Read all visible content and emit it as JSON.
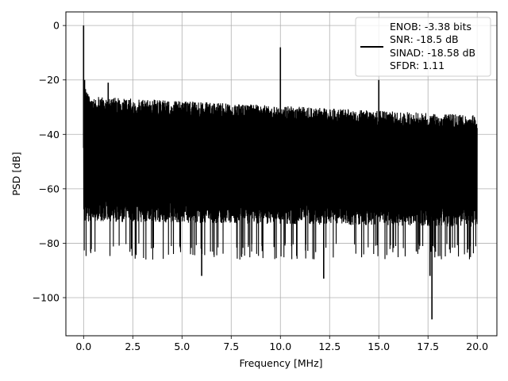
{
  "chart_data": {
    "type": "line",
    "xlabel": "Frequency [MHz]",
    "ylabel": "PSD [dB]",
    "xlim": [
      -0.9,
      21.0
    ],
    "ylim": [
      -114,
      5
    ],
    "xticks": [
      0.0,
      2.5,
      5.0,
      7.5,
      10.0,
      12.5,
      15.0,
      17.5,
      20.0
    ],
    "xtick_labels": [
      "0.0",
      "2.5",
      "5.0",
      "7.5",
      "10.0",
      "12.5",
      "15.0",
      "17.5",
      "20.0"
    ],
    "yticks": [
      0,
      -20,
      -40,
      -60,
      -80,
      -100
    ],
    "ytick_labels": [
      "0",
      "−20",
      "−40",
      "−60",
      "−80",
      "−100"
    ],
    "grid": true,
    "legend": {
      "position": "top-right",
      "lines": [
        "ENOB: -3.38 bits",
        "SNR: -18.5 dB",
        "SINAD: -18.58 dB",
        "SFDR: 1.11"
      ]
    },
    "series": [
      {
        "color": "#000000",
        "noise_floor": {
          "x_range": [
            0.0,
            20.0
          ],
          "upper_envelope_db": [
            -26,
            -33
          ],
          "lower_typical_db": [
            -68,
            -70
          ],
          "deep_dip_db": -80
        },
        "spikes": [
          {
            "x": 0.0,
            "y": 0.0
          },
          {
            "x": 0.05,
            "y": -20
          },
          {
            "x": 1.25,
            "y": -21
          },
          {
            "x": 10.0,
            "y": -8
          },
          {
            "x": 15.0,
            "y": -20
          },
          {
            "x": 6.0,
            "y": -92
          },
          {
            "x": 12.2,
            "y": -93
          },
          {
            "x": 17.6,
            "y": -92
          },
          {
            "x": 17.7,
            "y": -108
          }
        ]
      }
    ]
  }
}
